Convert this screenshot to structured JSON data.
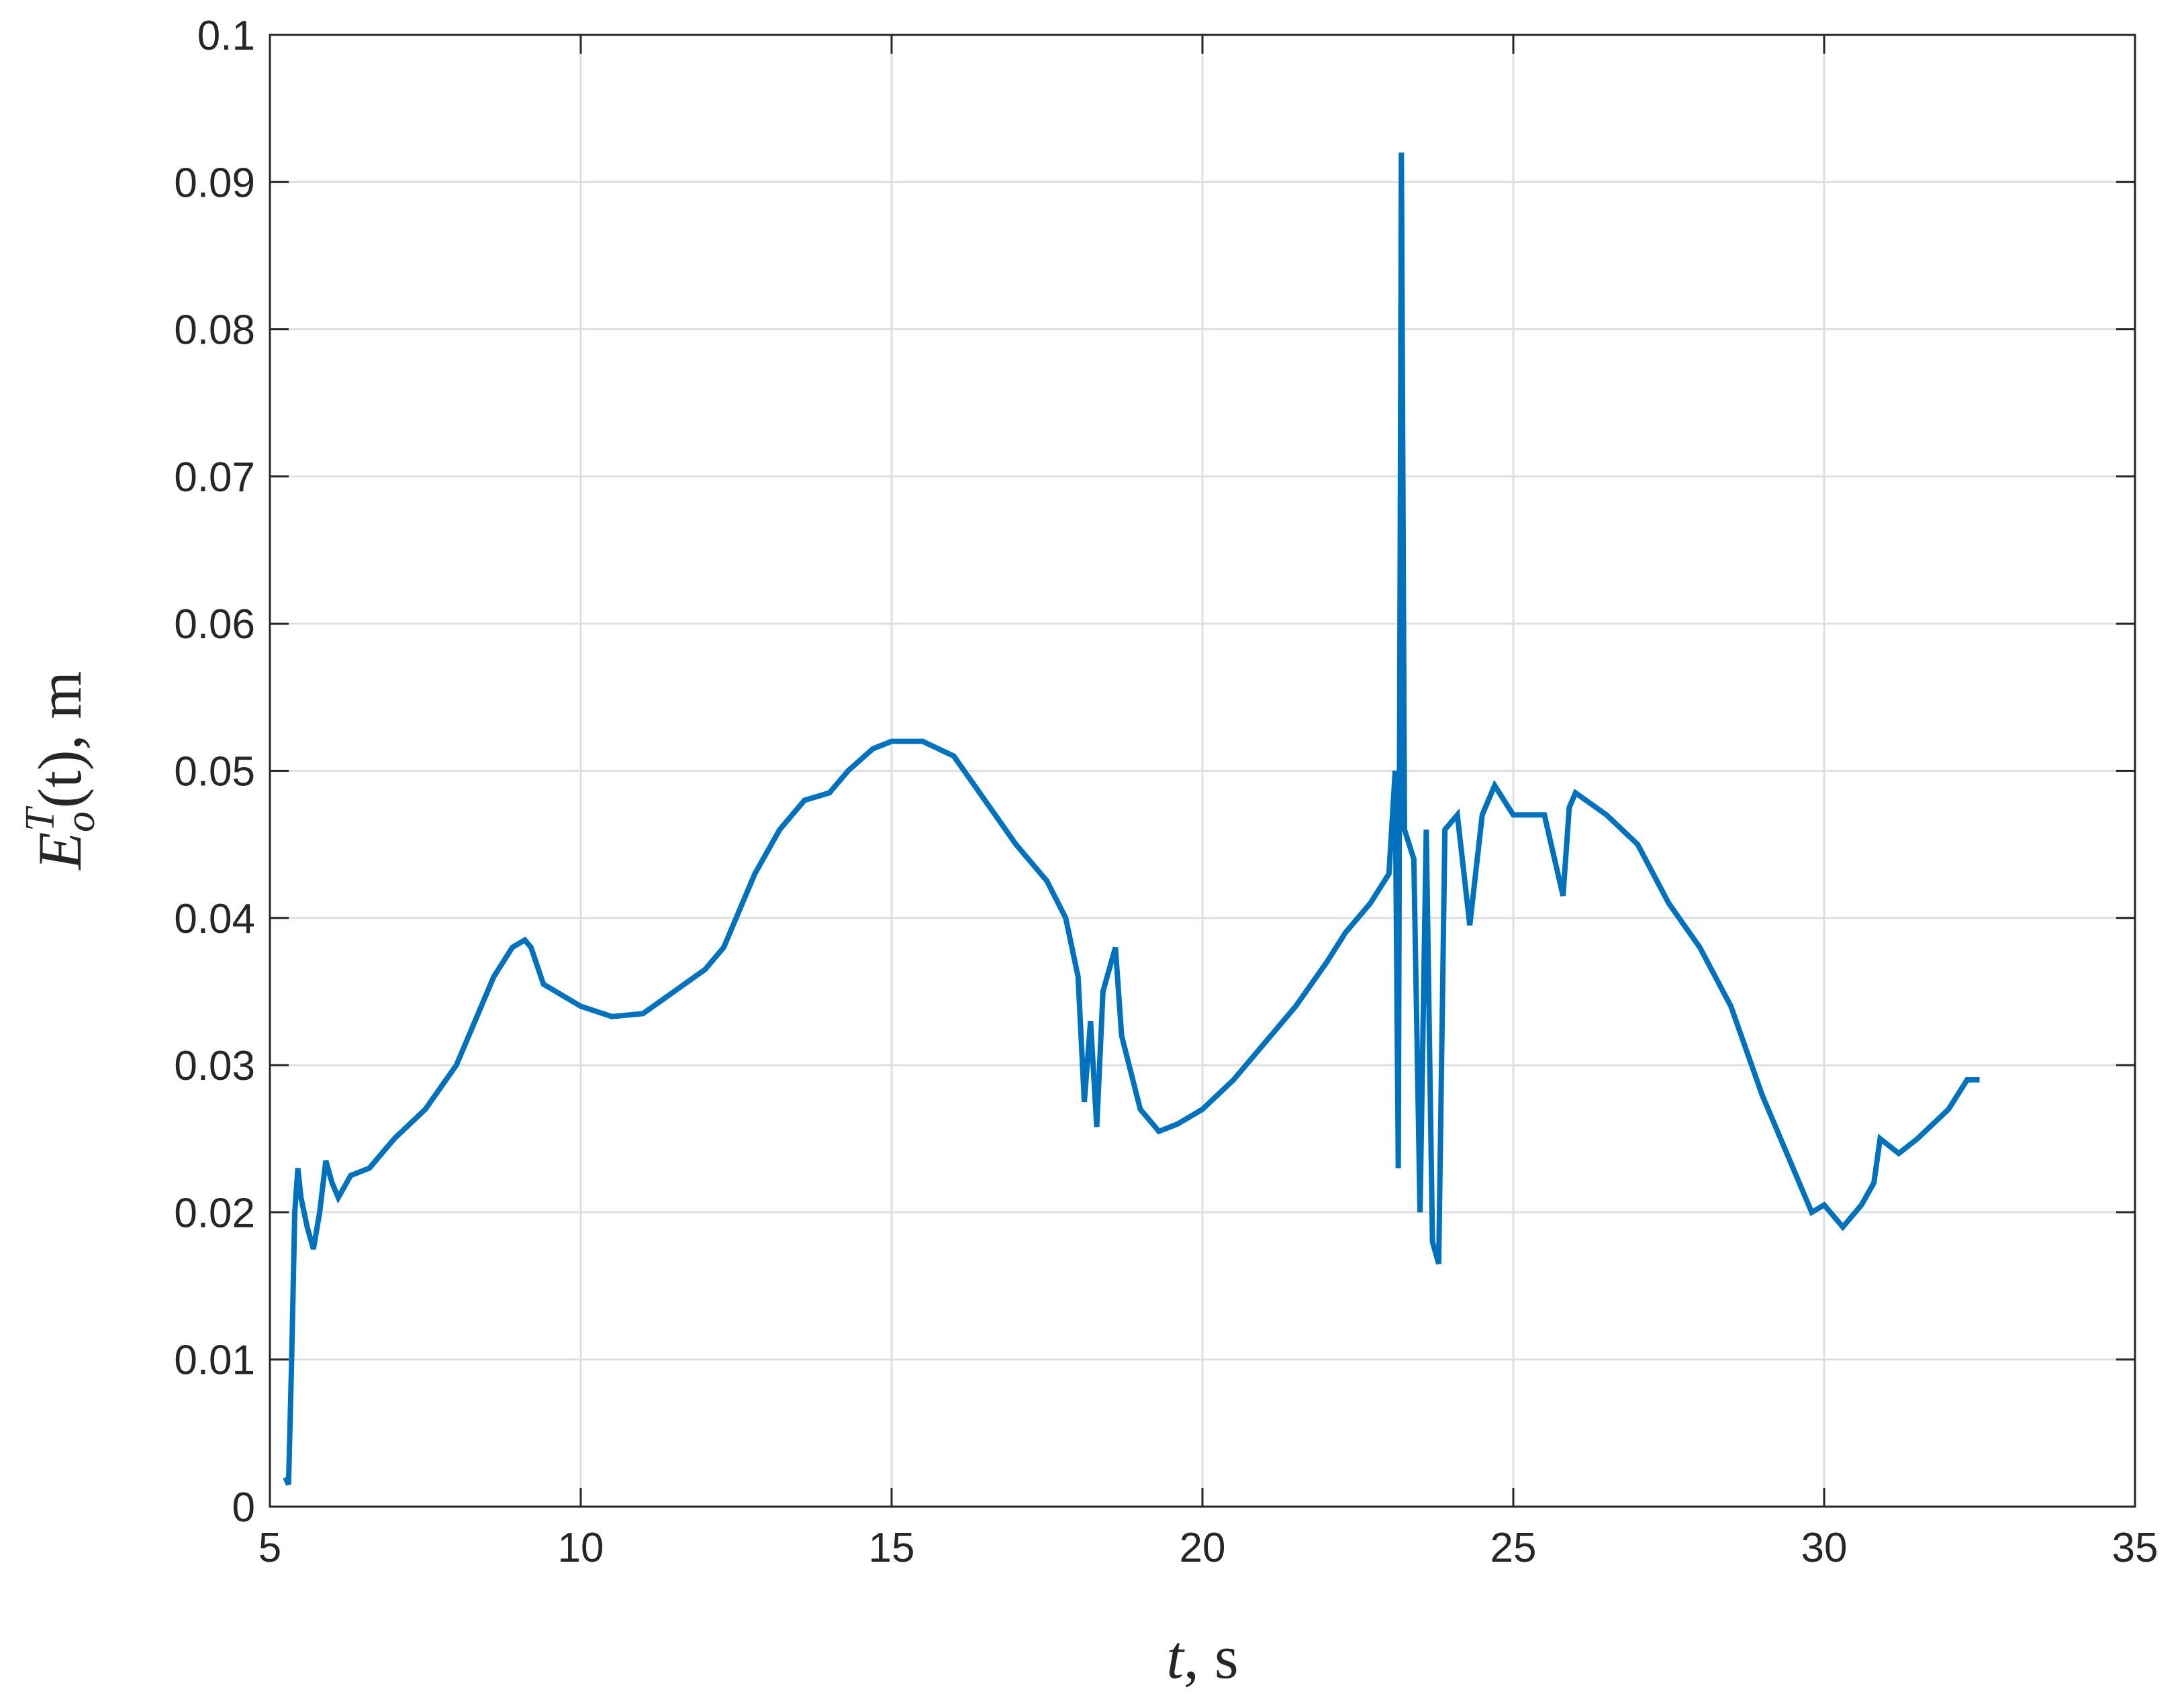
{
  "chart_data": {
    "type": "line",
    "xlabel": {
      "var": "t",
      "rest": ", s"
    },
    "ylabel": {
      "base": "E",
      "sub": "o",
      "sup": "T",
      "rest": "(t), m"
    },
    "xlim": [
      5,
      35
    ],
    "xticks": [
      5,
      10,
      15,
      20,
      25,
      30,
      35
    ],
    "ylim": [
      0,
      0.1
    ],
    "yticks": [
      0,
      0.01,
      0.02,
      0.03,
      0.04,
      0.05,
      0.06,
      0.07,
      0.08,
      0.09,
      0.1
    ],
    "grid": true,
    "series": [
      {
        "color": "#0072bd",
        "x": [
          5.25,
          5.3,
          5.35,
          5.4,
          5.45,
          5.5,
          5.6,
          5.7,
          5.8,
          5.9,
          6.0,
          6.1,
          6.3,
          6.6,
          7.0,
          7.5,
          8.0,
          8.3,
          8.6,
          8.9,
          9.1,
          9.2,
          9.4,
          9.6,
          10.0,
          10.5,
          11.0,
          11.5,
          12.0,
          12.3,
          12.5,
          12.8,
          13.2,
          13.6,
          14.0,
          14.3,
          14.7,
          15.0,
          15.5,
          16.0,
          16.5,
          17.0,
          17.5,
          17.8,
          18.0,
          18.1,
          18.2,
          18.3,
          18.4,
          18.6,
          18.7,
          19.0,
          19.3,
          19.6,
          20.0,
          20.5,
          21.0,
          21.5,
          22.0,
          22.3,
          22.7,
          23.0,
          23.1,
          23.15,
          23.2,
          23.25,
          23.4,
          23.5,
          23.6,
          23.7,
          23.8,
          23.9,
          24.1,
          24.3,
          24.5,
          24.7,
          25.0,
          25.5,
          25.8,
          25.9,
          26.0,
          26.5,
          27.0,
          27.5,
          28.0,
          28.5,
          29.0,
          29.5,
          29.8,
          30.0,
          30.3,
          30.6,
          30.8,
          30.9,
          31.2,
          31.5,
          32.0,
          32.3,
          32.5
        ],
        "values": [
          0.002,
          0.0015,
          0.01,
          0.02,
          0.023,
          0.021,
          0.019,
          0.0175,
          0.02,
          0.0235,
          0.022,
          0.021,
          0.0225,
          0.023,
          0.025,
          0.027,
          0.03,
          0.033,
          0.036,
          0.038,
          0.0385,
          0.038,
          0.0355,
          0.035,
          0.034,
          0.0333,
          0.0335,
          0.035,
          0.0365,
          0.038,
          0.04,
          0.043,
          0.046,
          0.048,
          0.0485,
          0.05,
          0.0515,
          0.052,
          0.052,
          0.051,
          0.048,
          0.045,
          0.0425,
          0.04,
          0.036,
          0.0275,
          0.033,
          0.0258,
          0.035,
          0.038,
          0.032,
          0.027,
          0.0255,
          0.026,
          0.027,
          0.029,
          0.0315,
          0.034,
          0.037,
          0.039,
          0.041,
          0.043,
          0.05,
          0.023,
          0.092,
          0.046,
          0.044,
          0.02,
          0.046,
          0.018,
          0.0165,
          0.046,
          0.047,
          0.0395,
          0.047,
          0.049,
          0.047,
          0.047,
          0.0415,
          0.0475,
          0.0485,
          0.047,
          0.045,
          0.041,
          0.038,
          0.034,
          0.028,
          0.023,
          0.02,
          0.0205,
          0.019,
          0.0205,
          0.022,
          0.025,
          0.024,
          0.025,
          0.027,
          0.029,
          0.029
        ]
      }
    ]
  }
}
